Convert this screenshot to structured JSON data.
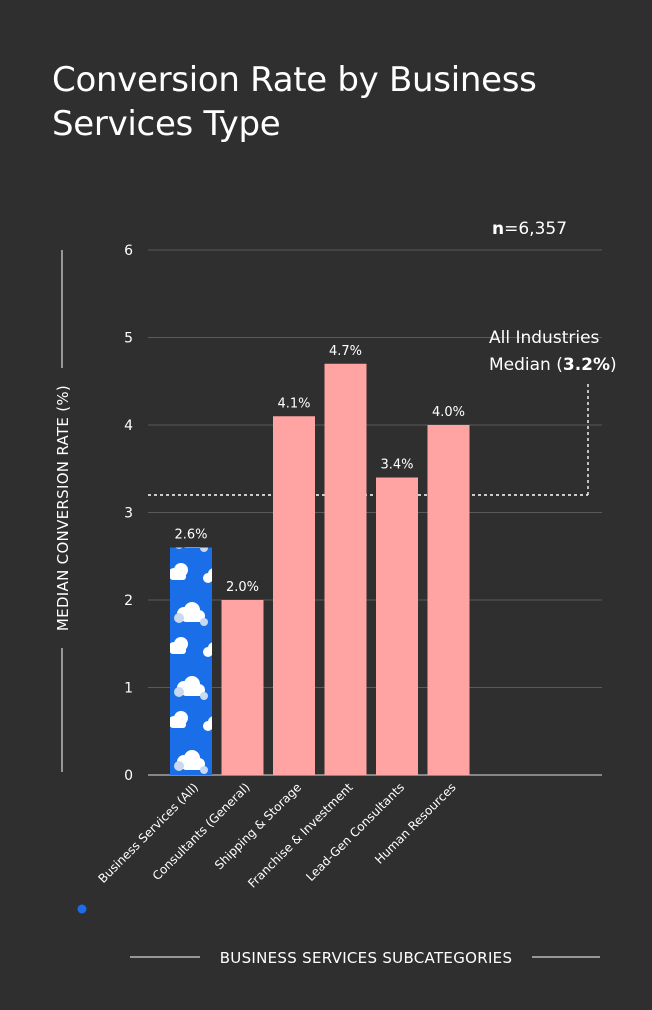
{
  "chart_data": {
    "type": "bar",
    "title": "Conversion Rate by Business Services Type",
    "sample_size_prefix": "n",
    "sample_size_value": "=6,357",
    "xlabel": "BUSINESS SERVICES SUBCATEGORIES",
    "ylabel": "MEDIAN CONVERSION RATE (%)",
    "ylim": [
      0,
      6
    ],
    "yticks": [
      0,
      1,
      2,
      3,
      4,
      5,
      6
    ],
    "grid": true,
    "categories": [
      "Business Services (All)",
      "Consultants (General)",
      "Shipping & Storage",
      "Franchise & Investment",
      "Lead-Gen Consultants",
      "Human Resources"
    ],
    "values": [
      2.6,
      2.0,
      4.1,
      4.7,
      3.4,
      4.0
    ],
    "value_labels": [
      "2.6%",
      "2.0%",
      "4.1%",
      "4.7%",
      "3.4%",
      "4.0%"
    ],
    "highlight_index": 0,
    "reference_line": {
      "value": 3.2,
      "label_line1": "All Industries",
      "label_line2_prefix": "Median (",
      "label_line2_value": "3.2%",
      "label_line2_suffix": ")"
    },
    "colors": {
      "background": "#2f2f2f",
      "bar": "#ffa3a3",
      "highlight_bar": "#1a6ee8",
      "highlight_dot": "#1a6ee8",
      "grid": "#5a5a5a",
      "text": "#ffffff"
    }
  }
}
